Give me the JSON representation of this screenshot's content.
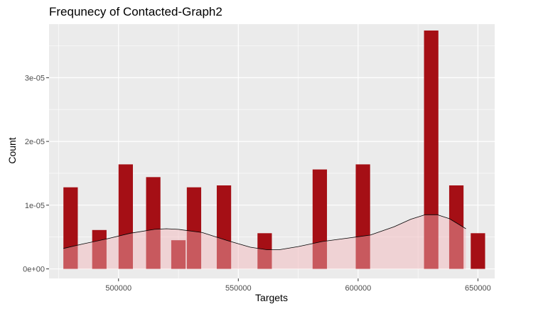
{
  "chart_data": {
    "type": "bar",
    "title": "Frequnecy of Contacted-Graph2",
    "xlabel": "Targets",
    "ylabel": "Count",
    "xlim": [
      471000,
      657000
    ],
    "ylim": [
      -1.5e-06,
      3.84e-05
    ],
    "x_ticks": [
      500000,
      550000,
      600000,
      650000
    ],
    "x_tick_labels": [
      "500000",
      "550000",
      "600000",
      "650000"
    ],
    "y_ticks": [
      0,
      1e-05,
      2e-05,
      3e-05
    ],
    "y_tick_labels": [
      "0e+00",
      "1e-05",
      "2e-05",
      "3e-05"
    ],
    "grid": true,
    "legend": "none",
    "bin_width": 6000,
    "bars": [
      {
        "x": 480000,
        "value": 1.28e-05
      },
      {
        "x": 492000,
        "value": 6.1e-06
      },
      {
        "x": 503000,
        "value": 1.64e-05
      },
      {
        "x": 514500,
        "value": 1.44e-05
      },
      {
        "x": 525000,
        "value": 4.5e-06
      },
      {
        "x": 531500,
        "value": 1.28e-05
      },
      {
        "x": 544000,
        "value": 1.31e-05
      },
      {
        "x": 561000,
        "value": 5.6e-06
      },
      {
        "x": 584000,
        "value": 1.56e-05
      },
      {
        "x": 602000,
        "value": 1.64e-05
      },
      {
        "x": 630500,
        "value": 3.74e-05
      },
      {
        "x": 641000,
        "value": 1.31e-05
      },
      {
        "x": 650000,
        "value": 5.6e-06
      }
    ],
    "density": {
      "x": [
        477000,
        485000,
        495000,
        505000,
        515000,
        520000,
        525000,
        535000,
        545000,
        555000,
        562000,
        567000,
        575000,
        585000,
        595000,
        605000,
        615000,
        622000,
        628000,
        633000,
        638000,
        645000
      ],
      "y": [
        3.2e-06,
        3.9e-06,
        4.7e-06,
        5.6e-06,
        6.2e-06,
        6.3e-06,
        6.2e-06,
        5.7e-06,
        4.5e-06,
        3.4e-06,
        3e-06,
        3e-06,
        3.5e-06,
        4.3e-06,
        4.8e-06,
        5.3e-06,
        6.6e-06,
        7.8e-06,
        8.5e-06,
        8.5e-06,
        7.9e-06,
        6.3e-06
      ]
    },
    "colors": {
      "panel": "#ebebeb",
      "grid": "#ffffff",
      "bar": "#a50f15",
      "density_fill": "#f4b3b8",
      "density_line": "#000000"
    }
  }
}
